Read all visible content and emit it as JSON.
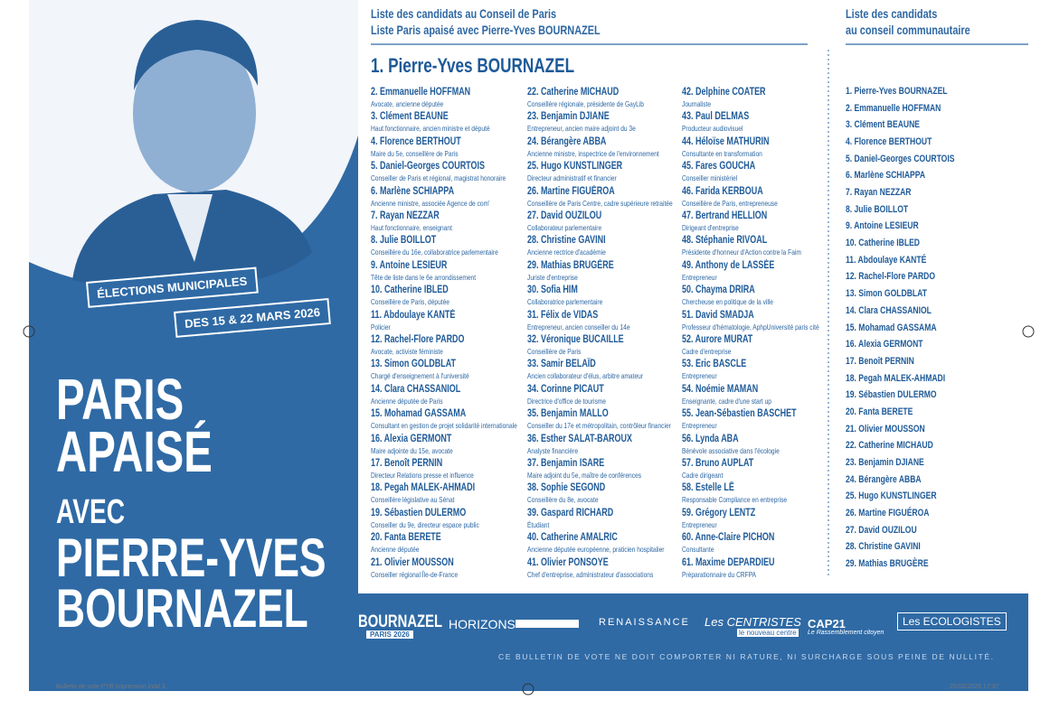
{
  "left_panel": {
    "badge_1": "ÉLECTIONS MUNICIPALES",
    "badge_2": "DES 15 & 22 MARS 2026",
    "slogan": [
      "PARIS",
      "APAISÉ"
    ],
    "with": "AVEC",
    "candidate": [
      "PIERRE-YVES",
      "BOURNAZEL"
    ]
  },
  "council_list": {
    "title": [
      "Liste des candidats au Conseil de Paris",
      "Liste Paris apaisé avec Pierre-Yves BOURNAZEL"
    ],
    "head": "1. Pierre-Yves BOURNAZEL",
    "candidates": [
      {
        "name": "2. Emmanuelle HOFFMAN",
        "description": "Avocate, ancienne députée"
      },
      {
        "name": "3. Clément BEAUNE",
        "description": "Haut fonctionnaire, ancien ministre et député"
      },
      {
        "name": "4. Florence BERTHOUT",
        "description": "Maire du 5e, conseillère de Paris"
      },
      {
        "name": "5. Daniel-Georges COURTOIS",
        "description": "Conseiller de Paris et régional, magistrat honoraire"
      },
      {
        "name": "6. Marlène SCHIAPPA",
        "description": "Ancienne ministre, associée Agence de com'"
      },
      {
        "name": "7. Rayan NEZZAR",
        "description": "Haut fonctionnaire, enseignant"
      },
      {
        "name": "8. Julie BOILLOT",
        "description": "Conseillère du 16e, collaboratrice parlementaire"
      },
      {
        "name": "9. Antoine LESIEUR",
        "description": "Tête de liste dans le 6e arrondissement"
      },
      {
        "name": "10. Catherine IBLED",
        "description": "Conseillère de Paris, députée"
      },
      {
        "name": "11. Abdoulaye KANTÉ",
        "description": "Policier"
      },
      {
        "name": "12. Rachel-Flore PARDO",
        "description": "Avocate, activiste féministe"
      },
      {
        "name": "13. Simon GOLDBLAT",
        "description": "Chargé d'enseignement à l'université"
      },
      {
        "name": "14. Clara CHASSANIOL",
        "description": "Ancienne députée de Paris"
      },
      {
        "name": "15. Mohamad GASSAMA",
        "description": "Consultant en gestion de projet solidarité internationale"
      },
      {
        "name": "16. Alexia GERMONT",
        "description": "Maire adjointe du 15e, avocate"
      },
      {
        "name": "17. Benoît PERNIN",
        "description": "Directeur Relations presse et influence"
      },
      {
        "name": "18. Pegah MALEK-AHMADI",
        "description": "Conseillère législative au Sénat"
      },
      {
        "name": "19. Sébastien DULERMO",
        "description": "Conseiller du 9e, directeur espace public"
      },
      {
        "name": "20. Fanta BERETE",
        "description": "Ancienne députée"
      },
      {
        "name": "21. Olivier MOUSSON",
        "description": "Conseiller régional Île-de-France"
      },
      {
        "name": "22. Catherine MICHAUD",
        "description": "Conseillère régionale, présidente de GayLib"
      },
      {
        "name": "23. Benjamin DJIANE",
        "description": "Entrepreneur, ancien maire adjoint du 3e"
      },
      {
        "name": "24. Bérangère ABBA",
        "description": "Ancienne ministre, inspectrice de l'environnement"
      },
      {
        "name": "25. Hugo KUNSTLINGER",
        "description": "Directeur administratif et financier"
      },
      {
        "name": "26. Martine FIGUÉROA",
        "description": "Conseillère de Paris Centre, cadre supérieure retraitée"
      },
      {
        "name": "27. David OUZILOU",
        "description": "Collaborateur parlementaire"
      },
      {
        "name": "28. Christine GAVINI",
        "description": "Ancienne rectrice d'académie"
      },
      {
        "name": "29. Mathias BRUGÈRE",
        "description": "Juriste d'entreprise"
      },
      {
        "name": "30. Sofia HIM",
        "description": "Collaboratrice parlementaire"
      },
      {
        "name": "31. Félix de VIDAS",
        "description": "Entrepreneur, ancien conseiller du 14e"
      },
      {
        "name": "32. Véronique BUCAILLE",
        "description": "Conseillère de Paris"
      },
      {
        "name": "33. Samir BELAÏD",
        "description": "Ancien collaborateur d'élus, arbitre amateur"
      },
      {
        "name": "34. Corinne PICAUT",
        "description": "Directrice d'office de tourisme"
      },
      {
        "name": "35. Benjamin MALLO",
        "description": "Conseiller du 17e et métropolitain, contrôleur financier"
      },
      {
        "name": "36. Esther SALAT-BAROUX",
        "description": "Analyste financière"
      },
      {
        "name": "37. Benjamin ISARE",
        "description": "Maire adjoint du 5e, maître de conférences"
      },
      {
        "name": "38. Sophie SEGOND",
        "description": "Conseillère du 8e, avocate"
      },
      {
        "name": "39. Gaspard RICHARD",
        "description": "Étudiant"
      },
      {
        "name": "40. Catherine AMALRIC",
        "description": "Ancienne députée européenne, praticien hospitalier"
      },
      {
        "name": "41. Olivier PONSOYE",
        "description": "Chef d'entreprise, administrateur d'associations"
      },
      {
        "name": "42. Delphine COATER",
        "description": "Journaliste"
      },
      {
        "name": "43. Paul DELMAS",
        "description": "Producteur audiovisuel"
      },
      {
        "name": "44. Héloïse MATHURIN",
        "description": "Consultante en transformation"
      },
      {
        "name": "45. Fares GOUCHA",
        "description": "Conseiller ministériel"
      },
      {
        "name": "46. Farida KERBOUA",
        "description": "Conseillère de Paris, entrepreneuse"
      },
      {
        "name": "47. Bertrand HELLION",
        "description": "Dirigeant d'entreprise"
      },
      {
        "name": "48. Stéphanie RIVOAL",
        "description": "Présidente d'honneur d'Action contre la Faim"
      },
      {
        "name": "49. Anthony de LASSÉE",
        "description": "Entrepreneur"
      },
      {
        "name": "50. Chayma DRIRA",
        "description": "Chercheuse en politique de la ville"
      },
      {
        "name": "51. David SMADJA",
        "description": "Professeur d'hématologie, AphpUniversité paris cité"
      },
      {
        "name": "52. Aurore MURAT",
        "description": "Cadre d'entreprise"
      },
      {
        "name": "53. Eric BASCLE",
        "description": "Entrepreneur"
      },
      {
        "name": "54. Noémie MAMAN",
        "description": "Enseignante, cadre d'une start up"
      },
      {
        "name": "55. Jean-Sébastien BASCHET",
        "description": "Entrepreneur"
      },
      {
        "name": "56. Lynda ABA",
        "description": "Bénévole associative dans l'écologie"
      },
      {
        "name": "57. Bruno AUPLAT",
        "description": "Cadre dirigeant"
      },
      {
        "name": "58. Estelle LÊ",
        "description": "Responsable Compliance en entreprise"
      },
      {
        "name": "59. Grégory LENTZ",
        "description": "Entrepreneur"
      },
      {
        "name": "60. Anne-Claire PICHON",
        "description": "Consultante"
      },
      {
        "name": "61. Maxime DEPARDIEU",
        "description": "Préparationnaire du CRFPA"
      }
    ]
  },
  "community_list": {
    "title": [
      "Liste des candidats",
      "au conseil communautaire"
    ],
    "candidates": [
      "1. Pierre-Yves BOURNAZEL",
      "2. Emmanuelle HOFFMAN",
      "3. Clément BEAUNE",
      "4. Florence BERTHOUT",
      "5. Daniel-Georges COURTOIS",
      "6. Marlène SCHIAPPA",
      "7. Rayan NEZZAR",
      "8. Julie BOILLOT",
      "9. Antoine LESIEUR",
      "10. Catherine IBLED",
      "11. Abdoulaye KANTÉ",
      "12. Rachel-Flore PARDO",
      "13. Simon GOLDBLAT",
      "14. Clara CHASSANIOL",
      "15. Mohamad GASSAMA",
      "16. Alexia GERMONT",
      "17. Benoît PERNIN",
      "18. Pegah MALEK-AHMADI",
      "19. Sébastien DULERMO",
      "20. Fanta BERETE",
      "21. Olivier MOUSSON",
      "22. Catherine MICHAUD",
      "23. Benjamin DJIANE",
      "24. Bérangère ABBA",
      "25. Hugo KUNSTLINGER",
      "26. Martine FIGUÉROA",
      "27. David OUZILOU",
      "28. Christine GAVINI",
      "29. Mathias BRUGÈRE"
    ]
  },
  "logos": {
    "bournazel": "BOURNAZEL",
    "bournazel_sub": "PARIS 2026",
    "horizons": "HORIZONS",
    "renaissance": "RENAISSANCE",
    "centristes": "Les CENTRISTES",
    "centristes_sub": "le nouveau centre",
    "cap21": "CAP21",
    "cap21_sub": "Le Rassemblement citoyen",
    "ecologistes": "Les ECOLOGISTES"
  },
  "notice": "CE BULLETIN DE VOTE NE DOIT COMPORTER NI RATURE, NI SURCHARGE SOUS PEINE DE NULLITÉ.",
  "print_marks": [
    "Bulletin de vote PYB impression.indd 3",
    "25/02/2026 17:37"
  ]
}
